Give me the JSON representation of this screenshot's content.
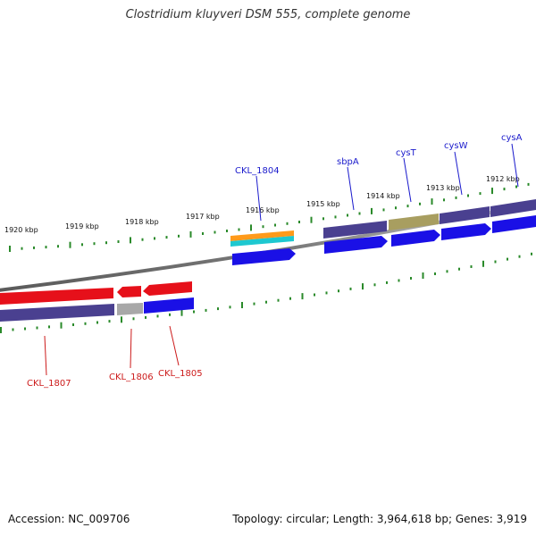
{
  "title": "Clostridium kluyveri DSM 555, complete genome",
  "footer": {
    "accession": "Accession: NC_009706",
    "summary": "Topology: circular; Length: 3,964,618 bp; Genes: 3,919"
  },
  "colors": {
    "backbone": "#8a8a8a",
    "tick": "#2a8a2a",
    "forward_label": "#1a1acc",
    "reverse_label": "#cc1a1a",
    "gene_blue": "#1a10e6",
    "gene_red": "#e6101a",
    "gene_gray": "#a8a8a8",
    "gene_purple": "#4a4090",
    "gene_olive": "#a89e60",
    "gene_orange": "#ff9a1a",
    "gene_cyan": "#1ec8d0"
  },
  "axis_labels": [
    "1920 kbp",
    "1919 kbp",
    "1918 kbp",
    "1917 kbp",
    "1916 kbp",
    "1915 kbp",
    "1914 kbp",
    "1913 kbp",
    "1912 kbp"
  ],
  "forward_genes": [
    "CKL_1804",
    "sbpA",
    "cysT",
    "cysW",
    "cysA"
  ],
  "reverse_genes": [
    "CKL_1807",
    "CKL_1806",
    "CKL_1805"
  ]
}
